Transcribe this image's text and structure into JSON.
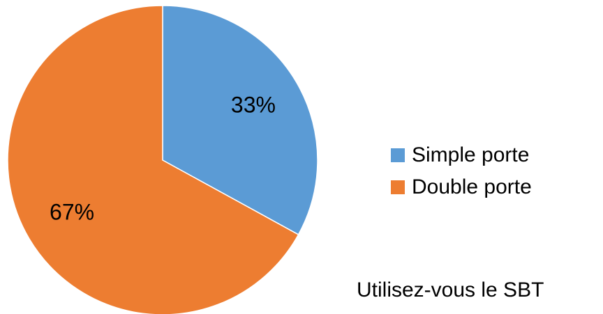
{
  "chart_data": {
    "type": "pie",
    "title": "",
    "categories": [
      "Simple porte",
      "Double porte"
    ],
    "values": [
      33,
      67
    ],
    "data_labels": [
      "33%",
      "67%"
    ],
    "colors": [
      "#5B9BD5",
      "#ED7D31"
    ],
    "legend_position": "right",
    "start_angle": "top",
    "direction": "clockwise"
  },
  "legend": {
    "items": [
      {
        "label": "Simple porte",
        "color": "#5B9BD5"
      },
      {
        "label": "Double porte",
        "color": "#ED7D31"
      }
    ]
  },
  "caption": "Utilisez-vous le SBT"
}
